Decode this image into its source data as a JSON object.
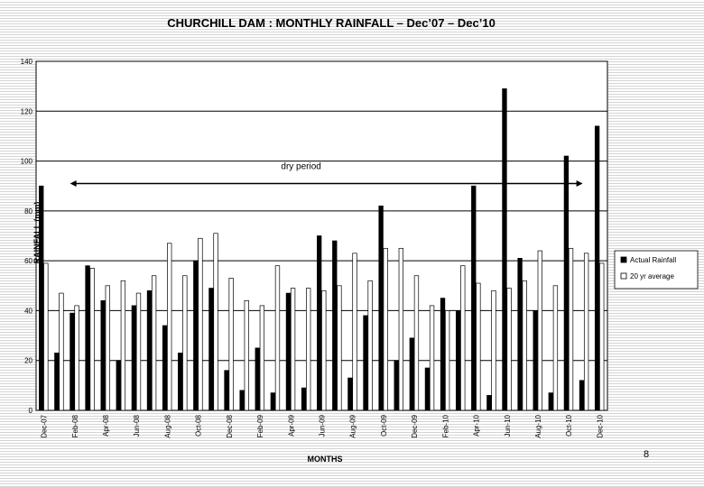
{
  "page_number": "8",
  "chart_data": {
    "type": "bar",
    "title": "CHURCHILL DAM : MONTHLY RAINFALL – Dec’07 – Dec’10",
    "xlabel": "MONTHS",
    "ylabel": "RAINFALL (mm)",
    "ylim": [
      0,
      140
    ],
    "yticks": [
      0,
      20,
      40,
      60,
      80,
      100,
      120,
      140
    ],
    "grid": true,
    "legend_position": "right",
    "annotation": "dry period",
    "annotation_span": [
      "Feb-08",
      "Nov-10"
    ],
    "tick_labels": [
      "Dec-07",
      "Feb-08",
      "Apr-08",
      "Jun-08",
      "Aug-08",
      "Oct-08",
      "Dec-08",
      "Feb-09",
      "Apr-09",
      "Jun-09",
      "Aug-09",
      "Oct-09",
      "Dec-09",
      "Feb-10",
      "Apr-10",
      "Jun-10",
      "Aug-10",
      "Oct-10",
      "Dec-10"
    ],
    "categories": [
      "Dec-07",
      "Jan-08",
      "Feb-08",
      "Mar-08",
      "Apr-08",
      "May-08",
      "Jun-08",
      "Jul-08",
      "Aug-08",
      "Sep-08",
      "Oct-08",
      "Nov-08",
      "Dec-08",
      "Jan-09",
      "Feb-09",
      "Mar-09",
      "Apr-09",
      "May-09",
      "Jun-09",
      "Jul-09",
      "Aug-09",
      "Sep-09",
      "Oct-09",
      "Nov-09",
      "Dec-09",
      "Jan-10",
      "Feb-10",
      "Mar-10",
      "Apr-10",
      "May-10",
      "Jun-10",
      "Jul-10",
      "Aug-10",
      "Sep-10",
      "Oct-10",
      "Nov-10",
      "Dec-10"
    ],
    "series": [
      {
        "name": "Actual Rainfall",
        "color": "#000000",
        "values": [
          90,
          23,
          39,
          58,
          44,
          20,
          42,
          48,
          34,
          23,
          60,
          49,
          16,
          8,
          25,
          7,
          47,
          9,
          70,
          68,
          13,
          38,
          82,
          20,
          29,
          17,
          45,
          40,
          90,
          6,
          129,
          61,
          40,
          7,
          102,
          12,
          114
        ]
      },
      {
        "name": "20 yr average",
        "color": "#ffffff",
        "values": [
          59,
          47,
          42,
          57,
          50,
          52,
          47,
          54,
          67,
          54,
          69,
          71,
          53,
          44,
          42,
          58,
          49,
          49,
          48,
          50,
          63,
          52,
          65,
          65,
          54,
          42,
          40,
          58,
          51,
          48,
          49,
          52,
          64,
          50,
          65,
          63,
          59
        ]
      }
    ]
  }
}
